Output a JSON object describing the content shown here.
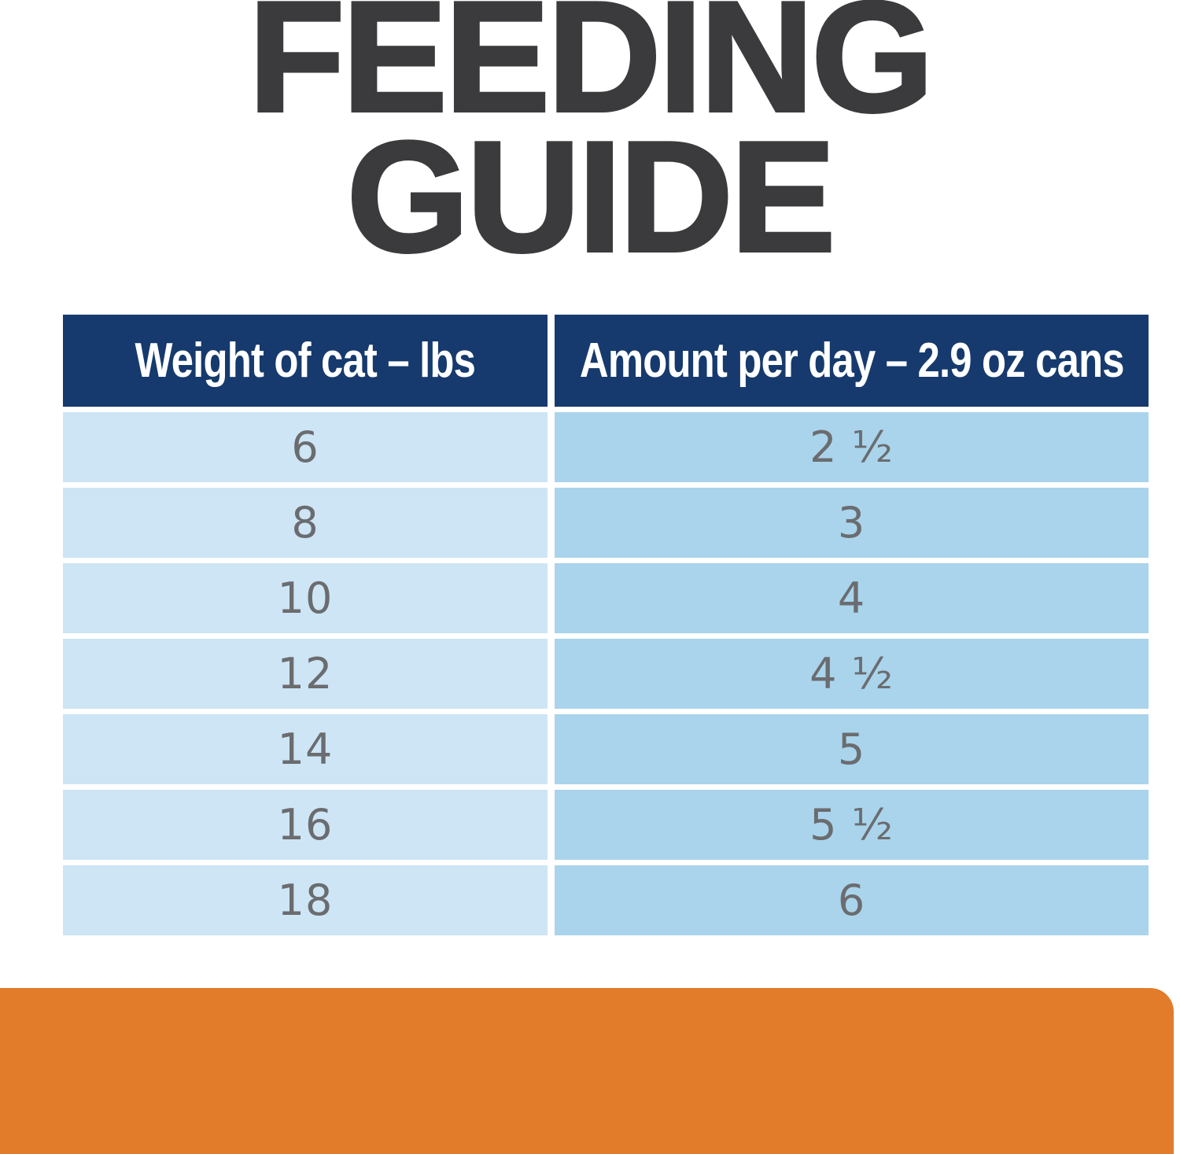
{
  "title": {
    "line1": "FEEDING",
    "line2": "GUIDE"
  },
  "table": {
    "headers": {
      "weight": "Weight of cat – lbs",
      "amount": "Amount per day – 2.9 oz cans"
    },
    "rows": [
      {
        "weight": "6",
        "amount": "2 ½"
      },
      {
        "weight": "8",
        "amount": "3"
      },
      {
        "weight": "10",
        "amount": "4"
      },
      {
        "weight": "12",
        "amount": "4 ½"
      },
      {
        "weight": "14",
        "amount": "5"
      },
      {
        "weight": "16",
        "amount": "5 ½"
      },
      {
        "weight": "18",
        "amount": "6"
      }
    ]
  },
  "chart_data": {
    "type": "table",
    "title": "FEEDING GUIDE",
    "columns": [
      "Weight of cat – lbs",
      "Amount per day – 2.9 oz cans"
    ],
    "rows": [
      [
        "6",
        "2 ½"
      ],
      [
        "8",
        "3"
      ],
      [
        "10",
        "4"
      ],
      [
        "12",
        "4 ½"
      ],
      [
        "14",
        "5"
      ],
      [
        "16",
        "5 ½"
      ],
      [
        "18",
        "6"
      ]
    ],
    "weights_lbs": [
      6,
      8,
      10,
      12,
      14,
      16,
      18
    ],
    "cans_per_day": [
      2.5,
      3,
      4,
      4.5,
      5,
      5.5,
      6
    ],
    "can_size_oz": 2.9
  },
  "colors": {
    "header_bg": "#163a6d",
    "row_left_bg": "#cde5f5",
    "row_right_bg": "#a9d4ec",
    "accent_orange": "#e27c2a",
    "title_text": "#3b3b3d",
    "cell_text": "#6b6c6f",
    "header_text": "#ffffff"
  }
}
